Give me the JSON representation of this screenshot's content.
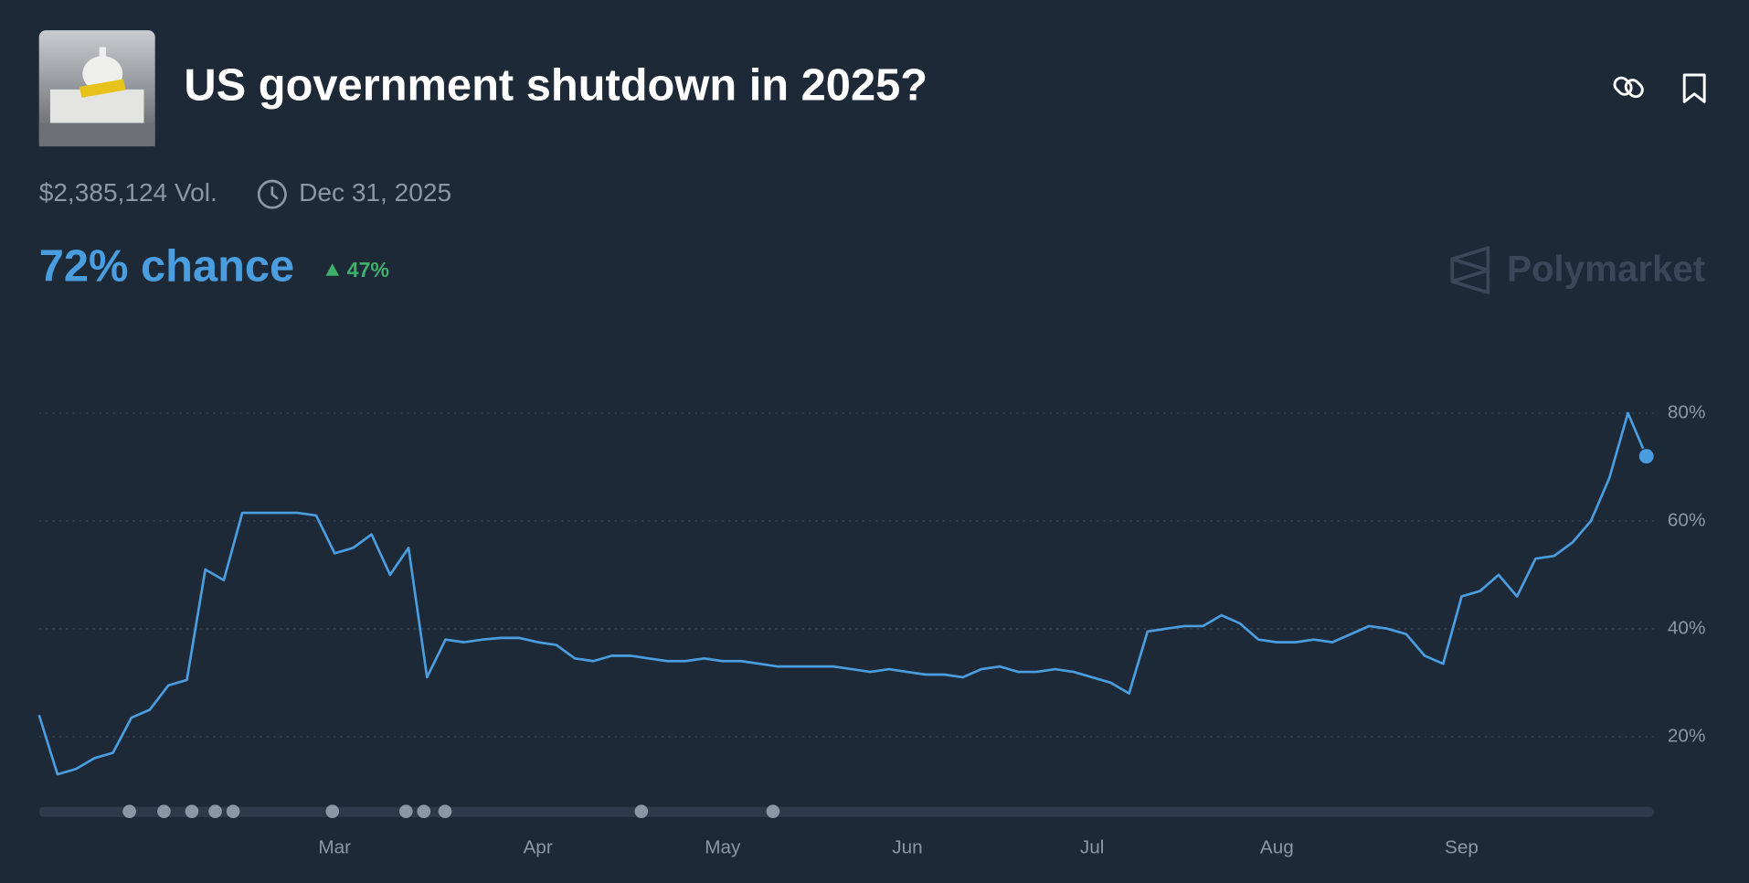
{
  "header": {
    "title": "US government shutdown in 2025?",
    "volume": "$2,385,124 Vol.",
    "end_date": "Dec 31, 2025",
    "chance": "72% chance",
    "change": "47%",
    "brand": "Polymarket"
  },
  "chart_data": {
    "type": "line",
    "categories": [
      null,
      null,
      null,
      null,
      null,
      null,
      null,
      null,
      null,
      null,
      null,
      null,
      null,
      null,
      null,
      null,
      "Mar",
      null,
      null,
      null,
      null,
      null,
      null,
      null,
      null,
      null,
      null,
      "Apr",
      null,
      null,
      null,
      null,
      null,
      null,
      null,
      null,
      null,
      "May",
      null,
      null,
      null,
      null,
      null,
      null,
      null,
      null,
      null,
      "Jun",
      null,
      null,
      null,
      null,
      null,
      null,
      null,
      null,
      null,
      "Jul",
      null,
      null,
      null,
      null,
      null,
      null,
      null,
      null,
      null,
      "Aug",
      null,
      null,
      null,
      null,
      null,
      null,
      null,
      null,
      null,
      "Sep",
      null,
      null,
      null,
      null,
      null,
      null,
      null,
      null,
      null,
      null
    ],
    "values": [
      24,
      13,
      14,
      16,
      17,
      23.5,
      25,
      29.5,
      30.5,
      51,
      49,
      61.5,
      61.5,
      61.5,
      61.5,
      61,
      54,
      55,
      57.5,
      50,
      55,
      31,
      38,
      37.5,
      38,
      38.3,
      38.3,
      37.5,
      37,
      34.5,
      34,
      35,
      35,
      34.5,
      34,
      34,
      34.5,
      34,
      34,
      33.5,
      33,
      33,
      33,
      33,
      32.5,
      32,
      32.5,
      32,
      31.5,
      31.5,
      31,
      32.5,
      33,
      32,
      32,
      32.5,
      32,
      31,
      30,
      28,
      39.5,
      40,
      40.5,
      40.5,
      42.5,
      41,
      38,
      37.5,
      37.5,
      38,
      37.5,
      39,
      40.5,
      40,
      39,
      35,
      33.5,
      46,
      47,
      50,
      46,
      53,
      53.5,
      56,
      60,
      68,
      80,
      72
    ],
    "color": "#4a9ee0",
    "ylim": [
      10,
      90
    ],
    "yticks": [
      {
        "value": 20,
        "label": "20%"
      },
      {
        "value": 40,
        "label": "40%"
      },
      {
        "value": 60,
        "label": "60%"
      },
      {
        "value": 80,
        "label": "80%"
      }
    ],
    "grid": true
  }
}
